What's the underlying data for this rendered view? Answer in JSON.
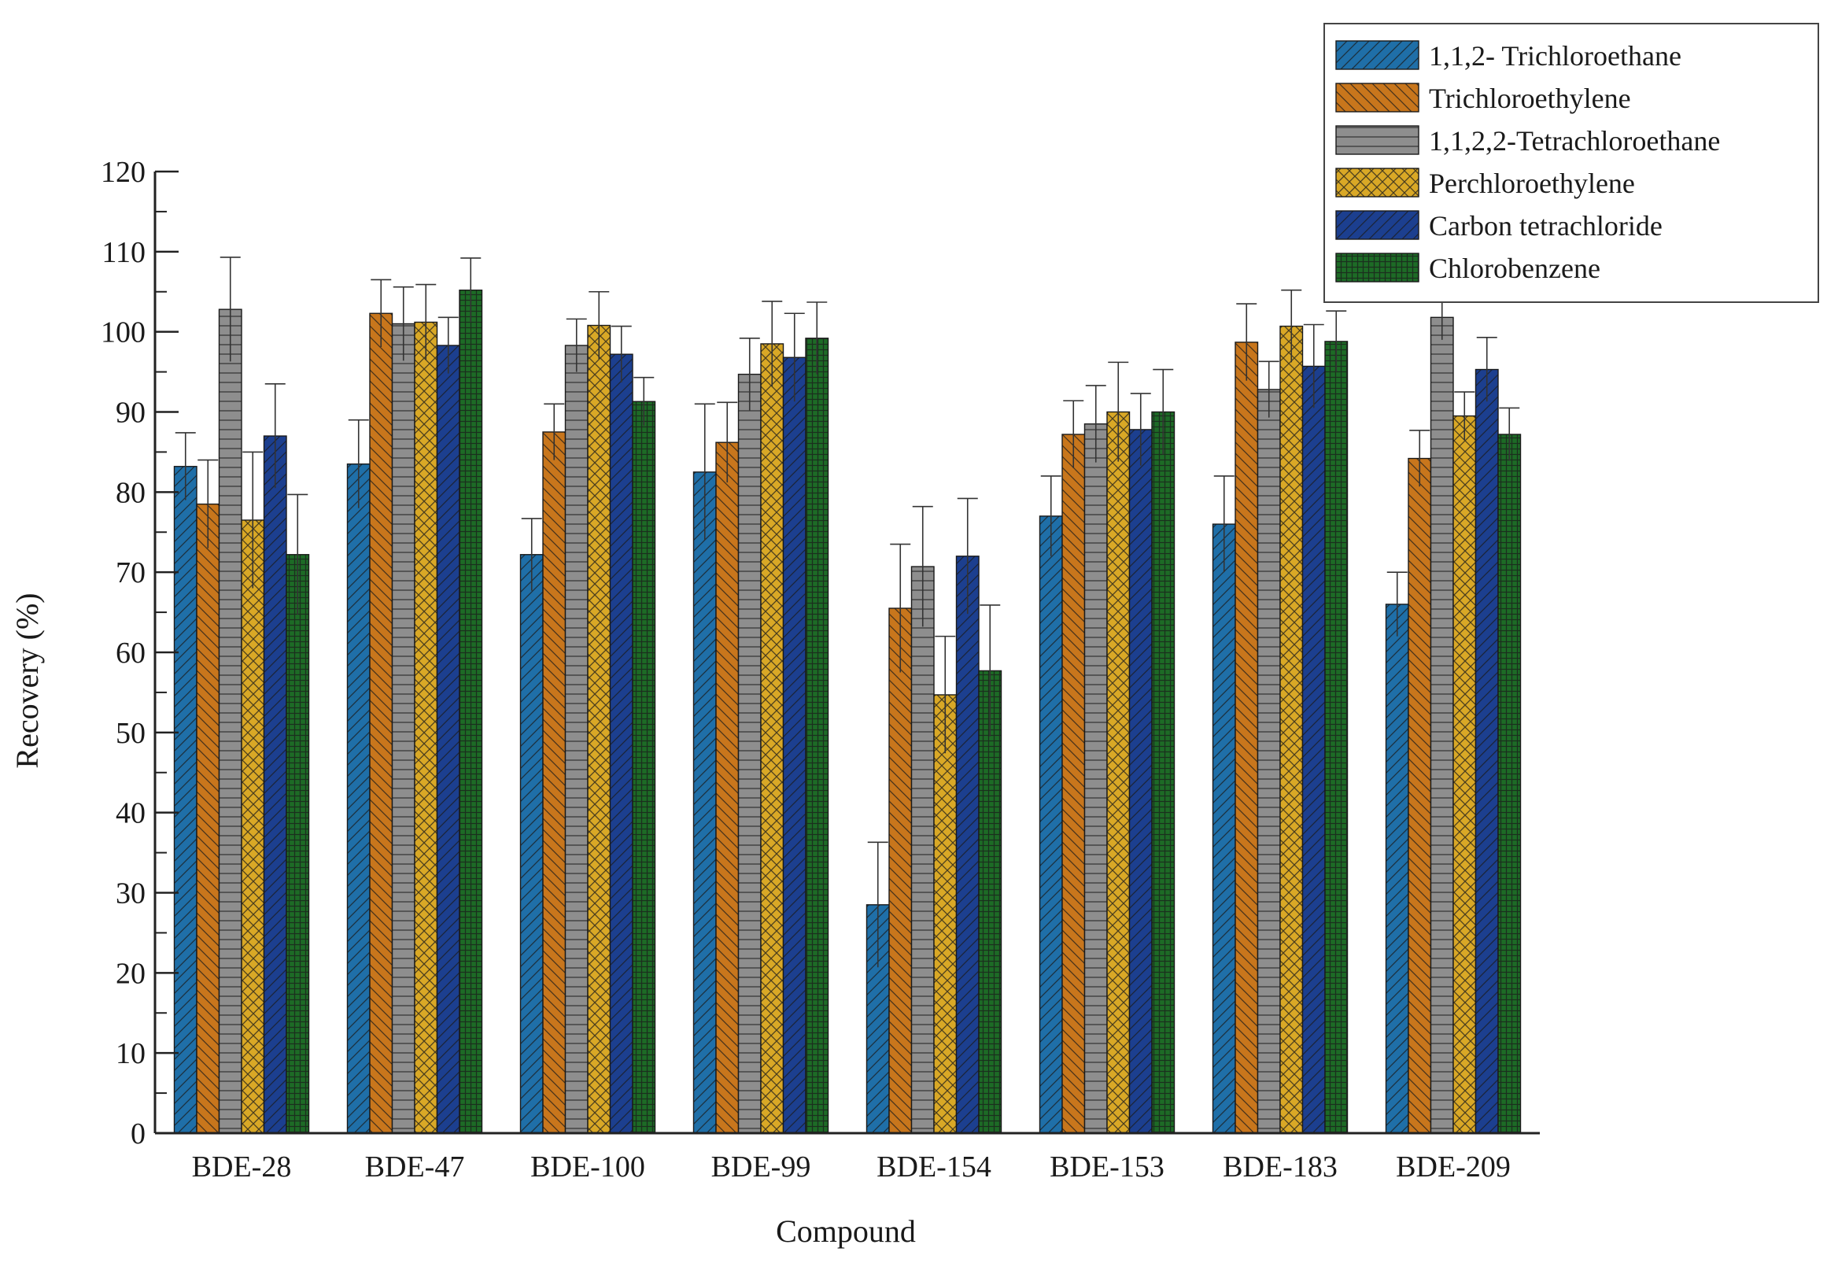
{
  "chart_data": {
    "type": "bar",
    "xlabel": "Compound",
    "ylabel": "Recovery (%)",
    "ylim": [
      0,
      120
    ],
    "yticks": [
      0,
      10,
      20,
      30,
      40,
      50,
      60,
      70,
      80,
      90,
      100,
      110,
      120
    ],
    "grid": false,
    "legend_position": "top-right",
    "categories": [
      "BDE-28",
      "BDE-47",
      "BDE-100",
      "BDE-99",
      "BDE-154",
      "BDE-153",
      "BDE-183",
      "BDE-209"
    ],
    "series": [
      {
        "name": "1,1,2- Trichloroethane",
        "color": "#1f6fa8",
        "pattern": "diagonal-forward",
        "values": [
          83.2,
          83.5,
          72.2,
          82.5,
          28.5,
          77.0,
          76.0,
          66.0
        ],
        "errors": [
          4.2,
          5.5,
          4.5,
          8.5,
          7.8,
          5.0,
          6.0,
          4.0
        ]
      },
      {
        "name": "Trichloroethylene",
        "color": "#c8761c",
        "pattern": "diagonal-back",
        "values": [
          78.5,
          102.3,
          87.5,
          86.2,
          65.5,
          87.2,
          98.7,
          84.2
        ],
        "errors": [
          5.5,
          4.2,
          3.5,
          5.0,
          8.0,
          4.2,
          4.8,
          3.5
        ]
      },
      {
        "name": "1,1,2,2-Tetrachloroethane",
        "color": "#8e8e8e",
        "pattern": "horizontal",
        "values": [
          102.8,
          101.0,
          98.3,
          94.7,
          70.7,
          88.5,
          92.8,
          101.8
        ],
        "errors": [
          6.5,
          4.6,
          3.3,
          4.5,
          7.5,
          4.8,
          3.5,
          2.8
        ]
      },
      {
        "name": "Perchloroethylene",
        "color": "#d9a826",
        "pattern": "crosshatch",
        "values": [
          76.5,
          101.2,
          100.8,
          98.5,
          54.7,
          90.0,
          100.7,
          89.5
        ],
        "errors": [
          8.5,
          4.7,
          4.2,
          5.3,
          7.3,
          6.2,
          4.5,
          3.0
        ]
      },
      {
        "name": "Carbon tetrachloride",
        "color": "#1c3f8f",
        "pattern": "diagonal-forward",
        "values": [
          87.0,
          98.3,
          97.2,
          96.8,
          72.0,
          87.8,
          95.7,
          95.3
        ],
        "errors": [
          6.5,
          3.5,
          3.5,
          5.5,
          7.2,
          4.5,
          5.2,
          4.0
        ]
      },
      {
        "name": "Chlorobenzene",
        "color": "#1d6b26",
        "pattern": "grid",
        "values": [
          72.2,
          105.2,
          91.3,
          99.2,
          57.7,
          90.0,
          98.8,
          87.2
        ],
        "errors": [
          7.5,
          4.0,
          3.0,
          4.5,
          8.2,
          5.3,
          3.8,
          3.3
        ]
      }
    ]
  }
}
